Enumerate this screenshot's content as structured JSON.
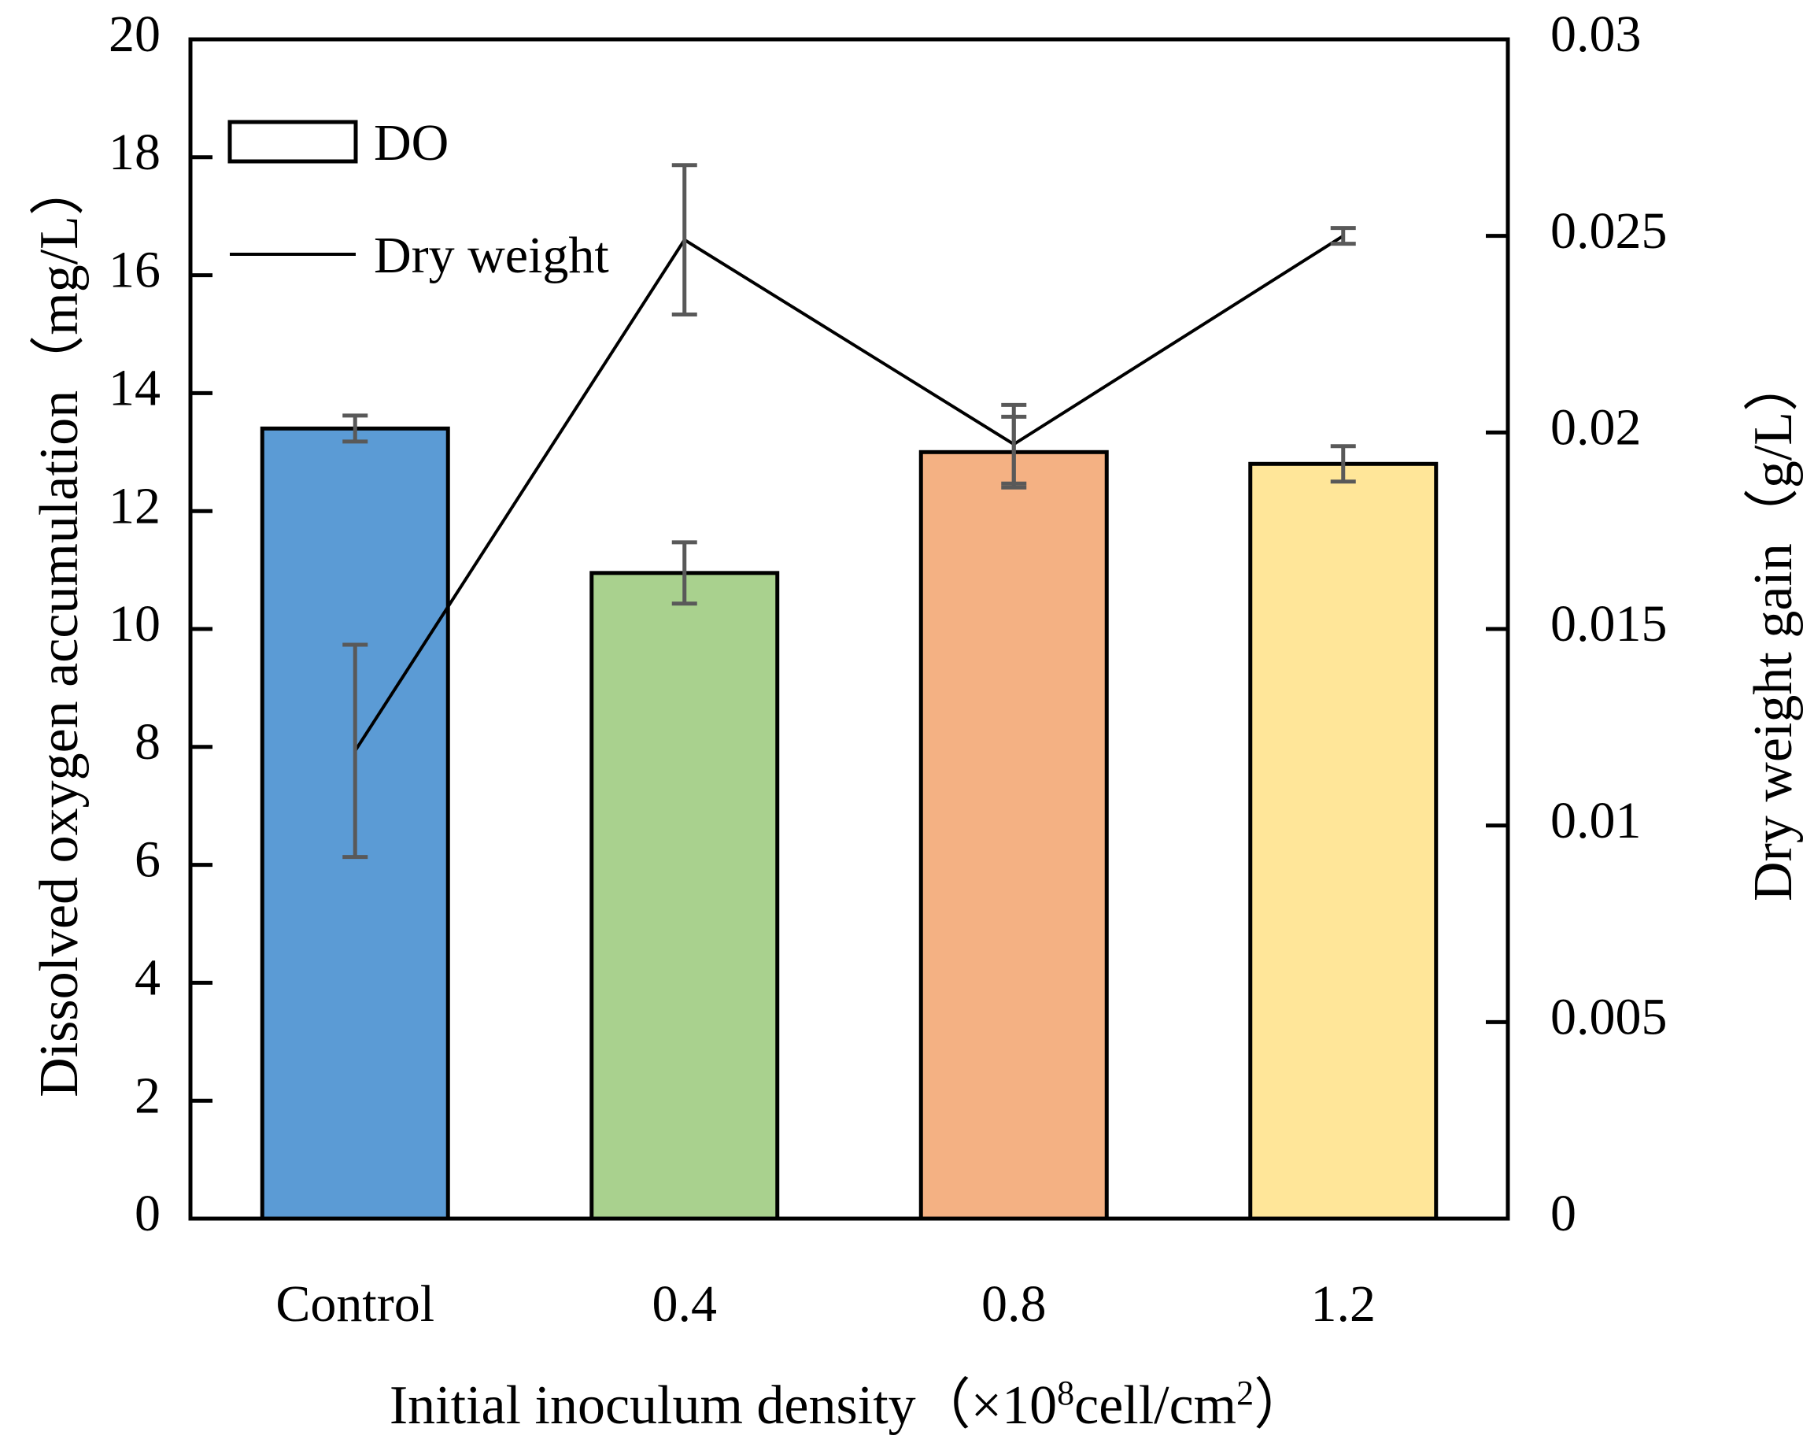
{
  "chart_data": {
    "type": "bar",
    "categories": [
      "Control",
      "0.4",
      "0.8",
      "1.2"
    ],
    "series": [
      {
        "name": "DO",
        "type": "bar",
        "axis": "left",
        "values": [
          13.4,
          10.95,
          13.0,
          12.8
        ],
        "errors": [
          0.22,
          0.52,
          0.6,
          0.3
        ],
        "colors": [
          "#5b9bd5",
          "#a9d18e",
          "#f4b183",
          "#ffe699"
        ]
      },
      {
        "name": "Dry weight",
        "type": "line",
        "axis": "right",
        "values": [
          0.0119,
          0.0249,
          0.0197,
          0.025
        ],
        "errors": [
          0.0027,
          0.0019,
          0.001,
          0.0002
        ]
      }
    ],
    "xlabel_main": "Initial inoculum density（×10",
    "xlabel_sup1": "8",
    "xlabel_mid": "cell/cm",
    "xlabel_sup2": "2",
    "xlabel_end": "）",
    "ylabel_left": "Dissolved oxygen accumulation（mg/L）",
    "ylabel_right": "Dry weight gain（g/L）",
    "ylim_left": [
      0,
      20
    ],
    "yticks_left": [
      "0",
      "2",
      "4",
      "6",
      "8",
      "10",
      "12",
      "14",
      "16",
      "18",
      "20"
    ],
    "ylim_right": [
      0,
      0.03
    ],
    "yticks_right": [
      "0",
      "0.005",
      "0.01",
      "0.015",
      "0.02",
      "0.025",
      "0.03"
    ],
    "legend_position": "top-left",
    "legend": [
      {
        "label": "DO",
        "kind": "box"
      },
      {
        "label": "Dry weight",
        "kind": "line"
      }
    ],
    "grid": false
  }
}
